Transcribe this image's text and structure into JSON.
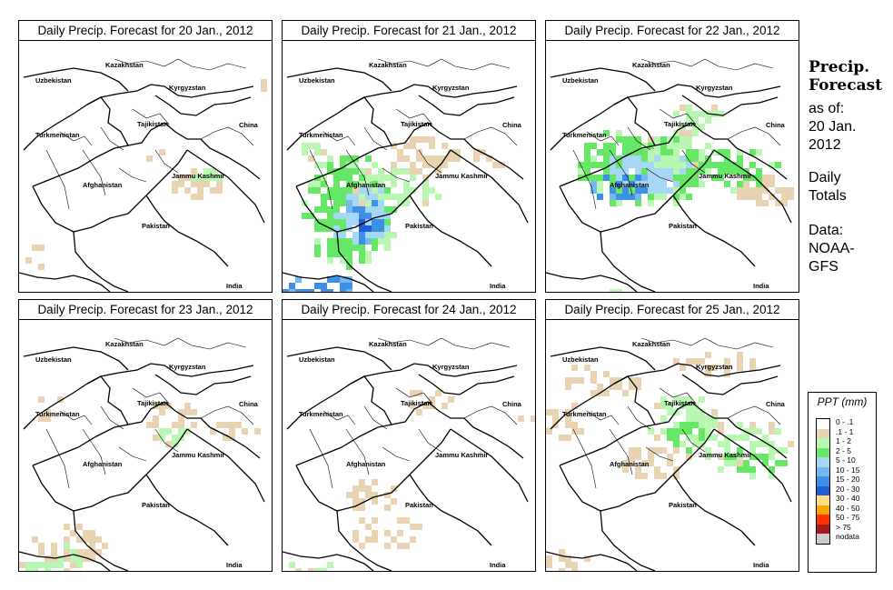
{
  "panels": [
    {
      "title": "Daily Precip. Forecast for  20 Jan., 2012",
      "variant": "p0"
    },
    {
      "title": "Daily Precip. Forecast for  21 Jan., 2012",
      "variant": "p1"
    },
    {
      "title": "Daily Precip. Forecast for  22 Jan., 2012",
      "variant": "p2"
    },
    {
      "title": "Daily Precip. Forecast for  23 Jan., 2012",
      "variant": "p3"
    },
    {
      "title": "Daily Precip. Forecast for  24 Jan., 2012",
      "variant": "p4"
    },
    {
      "title": "Daily Precip. Forecast for  25 Jan., 2012",
      "variant": "p5"
    }
  ],
  "labels": {
    "uzbekistan": "Uzbekistan",
    "kazakhstan": "Kazakhstan",
    "kyrgyzstan": "Kyrgyzstan",
    "tajikistan": "Tajikistan",
    "turkmenistan": "Turkmenistan",
    "china": "China",
    "afghanistan": "Afghanistan",
    "jammu_kashmir": "Jammu Kashmir",
    "pakistan": "Pakistan",
    "india": "India"
  },
  "side": {
    "title_line1": "Precip.",
    "title_line2": "Forecast",
    "asof_1": "as of:",
    "asof_2": "20 Jan.",
    "asof_3": "2012",
    "totals_1": "Daily",
    "totals_2": "Totals",
    "data_1": "Data:",
    "data_2": "NOAA-",
    "data_3": "GFS"
  },
  "legend": {
    "title": "PPT (mm)",
    "items": [
      {
        "label": "0 - .1",
        "color": "#ffffff"
      },
      {
        "label": ".1 - 1",
        "color": "#e8d3b3"
      },
      {
        "label": "1 - 2",
        "color": "#b9f7b2"
      },
      {
        "label": "2 - 5",
        "color": "#66e866"
      },
      {
        "label": "5 - 10",
        "color": "#a6d7f5"
      },
      {
        "label": "10 - 15",
        "color": "#73b9f0"
      },
      {
        "label": "15 - 20",
        "color": "#3e8fe6"
      },
      {
        "label": "20 - 30",
        "color": "#1f5fd6"
      },
      {
        "label": "30 - 40",
        "color": "#ffe080"
      },
      {
        "label": "40 - 50",
        "color": "#ffa500"
      },
      {
        "label": "50 - 75",
        "color": "#ff3300"
      },
      {
        "label": "> 75",
        "color": "#a61a1a"
      },
      {
        "label": "nodata",
        "color": "#cccccc"
      }
    ]
  }
}
